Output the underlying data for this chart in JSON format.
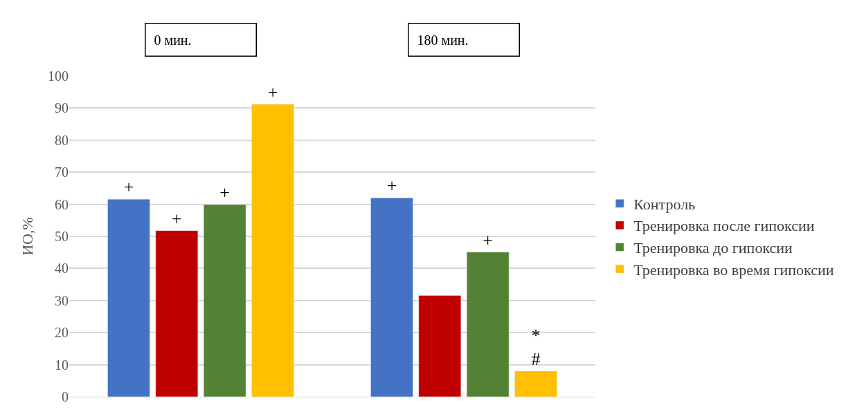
{
  "chart_data": {
    "type": "bar",
    "ylabel": "ИО,%",
    "categories": [
      "0 мин.",
      "180 мин."
    ],
    "series": [
      {
        "name": "Контроль",
        "color": "#4472c4",
        "values": [
          61.6,
          62.0
        ],
        "value_labels": [
          "+",
          "+"
        ]
      },
      {
        "name": "Тренировка после гипоксии",
        "color": "#c00000",
        "values": [
          51.8,
          31.6
        ],
        "value_labels": [
          "+",
          null
        ]
      },
      {
        "name": "Тренировка до гипоксии",
        "color": "#548235",
        "values": [
          59.9,
          45.1
        ],
        "value_labels": [
          "+",
          "+"
        ]
      },
      {
        "name": "Тренировка во время гипоксии",
        "color": "#ffc000",
        "values": [
          91.2,
          8.0
        ],
        "value_labels": [
          "+",
          "*\n#"
        ]
      }
    ],
    "ylim": [
      0,
      100
    ],
    "yticks": [
      0,
      10,
      20,
      30,
      40,
      50,
      60,
      70,
      80,
      90,
      100
    ],
    "grid": "y",
    "legend": "right"
  }
}
